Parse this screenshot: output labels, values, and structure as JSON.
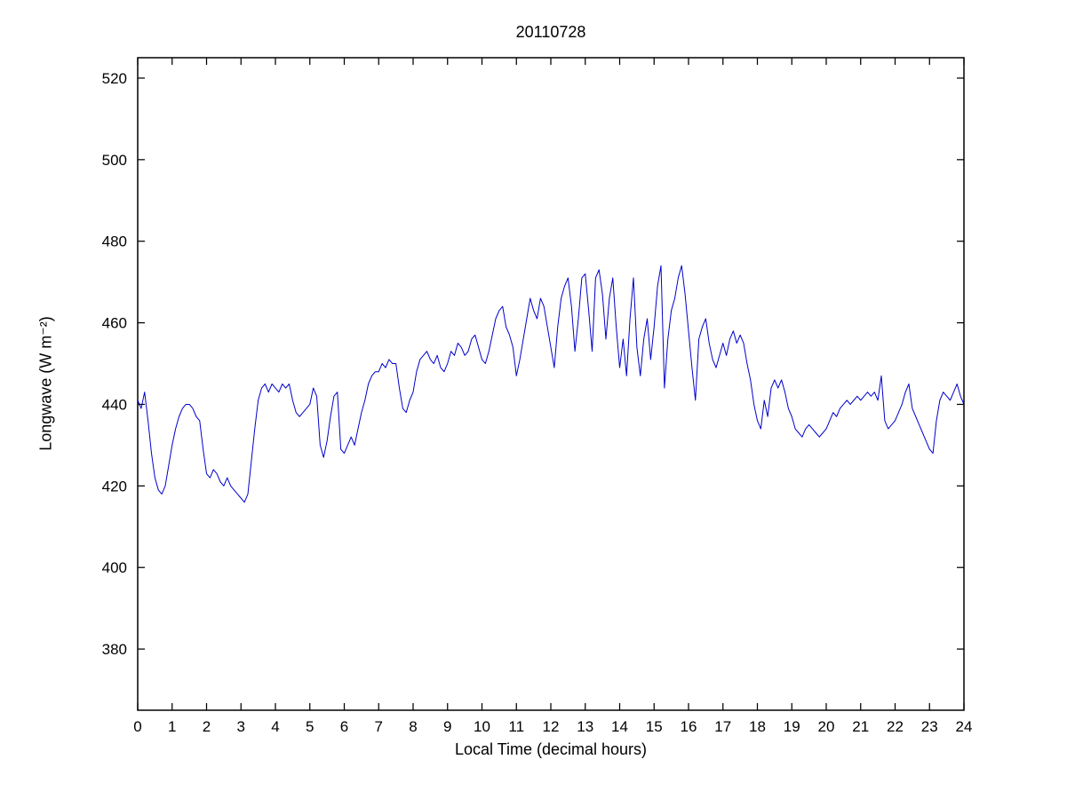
{
  "chart_data": {
    "type": "line",
    "title": "20110728",
    "xlabel": "Local Time (decimal hours)",
    "ylabel": "Longwave (W m⁻²)",
    "xlim": [
      0,
      24
    ],
    "ylim": [
      365,
      525
    ],
    "xticks": [
      0,
      1,
      2,
      3,
      4,
      5,
      6,
      7,
      8,
      9,
      10,
      11,
      12,
      13,
      14,
      15,
      16,
      17,
      18,
      19,
      20,
      21,
      22,
      23,
      24
    ],
    "yticks": [
      380,
      400,
      420,
      440,
      460,
      480,
      500,
      520
    ],
    "grid": false,
    "legend_position": "none",
    "line_color": "#0000CC",
    "axis_color": "#000000",
    "background_color": "#FFFFFF",
    "series": [
      {
        "name": "longwave",
        "x_start": 0,
        "x_step": 0.1,
        "values": [
          441,
          439,
          443,
          436,
          428,
          422,
          419,
          418,
          420,
          425,
          430,
          434,
          437,
          439,
          440,
          440,
          439,
          437,
          436,
          429,
          423,
          422,
          424,
          423,
          421,
          420,
          422,
          420,
          419,
          418,
          417,
          416,
          418,
          426,
          434,
          441,
          444,
          445,
          443,
          445,
          444,
          443,
          445,
          444,
          445,
          441,
          438,
          437,
          438,
          439,
          440,
          444,
          442,
          430,
          427,
          431,
          437,
          442,
          443,
          429,
          428,
          430,
          432,
          430,
          434,
          438,
          441,
          445,
          447,
          448,
          448,
          450,
          449,
          451,
          450,
          450,
          444,
          439,
          438,
          441,
          443,
          448,
          451,
          452,
          453,
          451,
          450,
          452,
          449,
          448,
          450,
          453,
          452,
          455,
          454,
          452,
          453,
          456,
          457,
          454,
          451,
          450,
          453,
          457,
          461,
          463,
          464,
          459,
          457,
          454,
          447,
          451,
          456,
          461,
          466,
          463,
          461,
          466,
          464,
          459,
          454,
          449,
          459,
          466,
          469,
          471,
          464,
          453,
          461,
          471,
          472,
          463,
          453,
          471,
          473,
          467,
          456,
          466,
          471,
          459,
          449,
          456,
          447,
          461,
          471,
          454,
          447,
          456,
          461,
          451,
          459,
          469,
          474,
          444,
          456,
          463,
          466,
          471,
          474,
          467,
          458,
          449,
          441,
          456,
          459,
          461,
          455,
          451,
          449,
          452,
          455,
          452,
          456,
          458,
          455,
          457,
          455,
          450,
          446,
          440,
          436,
          434,
          441,
          437,
          444,
          446,
          444,
          446,
          443,
          439,
          437,
          434,
          433,
          432,
          434,
          435,
          434,
          433,
          432,
          433,
          434,
          436,
          438,
          437,
          439,
          440,
          441,
          440,
          441,
          442,
          441,
          442,
          443,
          442,
          443,
          441,
          447,
          436,
          434,
          435,
          436,
          438,
          440,
          443,
          445,
          439,
          437,
          435,
          433,
          431,
          429,
          428,
          436,
          441,
          443,
          442,
          441,
          443,
          445,
          442,
          440
        ]
      }
    ]
  }
}
